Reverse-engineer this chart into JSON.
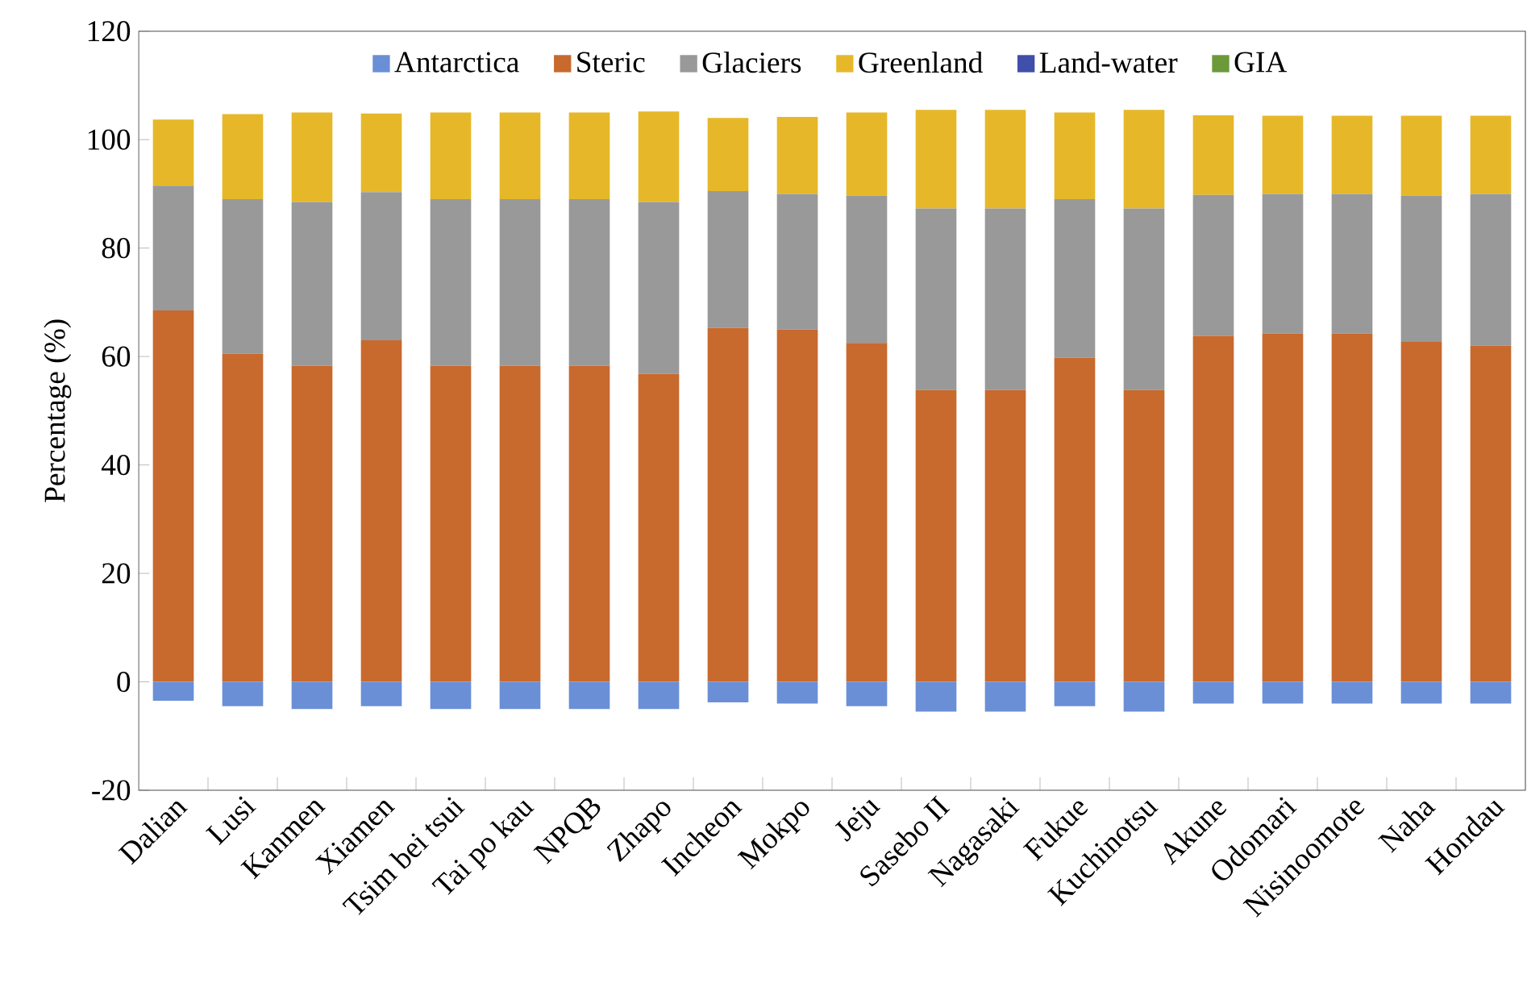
{
  "chart_data": {
    "type": "bar",
    "stacked": true,
    "ylabel": "Percentage (%)",
    "categories": [
      "Dalian",
      "Lusi",
      "Kanmen",
      "Xiamen",
      "Tsim bei tsui",
      "Tai po kau",
      "NPQB",
      "Zhapo",
      "Incheon",
      "Mokpo",
      "Jeju",
      "Sasebo II",
      "Nagasaki",
      "Fukue",
      "Kuchinotsu",
      "Akune",
      "Odomari",
      "Nisinoomote",
      "Naha",
      "Hondau"
    ],
    "series": [
      {
        "name": "Antarctica",
        "color": "#6a8fd6",
        "values": [
          -3.5,
          -4.5,
          -5,
          -4.5,
          -5,
          -5,
          -5,
          -5,
          -3.8,
          -4,
          -4.5,
          -5.5,
          -5.5,
          -4.5,
          -5.5,
          -4,
          -4,
          -4,
          -4,
          -4
        ]
      },
      {
        "name": "Steric",
        "color": "#c8692e",
        "values": [
          68.5,
          60.5,
          58.3,
          63,
          58.3,
          58.3,
          58.3,
          56.8,
          65.3,
          65,
          62.5,
          53.8,
          53.8,
          59.8,
          53.8,
          63.8,
          64.2,
          64.2,
          62.8,
          62
        ]
      },
      {
        "name": "Glaciers",
        "color": "#999999",
        "values": [
          23,
          28.5,
          30.2,
          27.3,
          30.7,
          30.7,
          30.7,
          31.7,
          25.2,
          25,
          27.2,
          33.5,
          33.5,
          29.2,
          33.5,
          26,
          25.8,
          25.8,
          26.9,
          28
        ]
      },
      {
        "name": "Greenland",
        "color": "#e6b829",
        "values": [
          12.2,
          15.7,
          16.5,
          14.5,
          16,
          16,
          16,
          16.7,
          13.5,
          14.2,
          15.3,
          18.2,
          18.2,
          16,
          18.2,
          14.7,
          14.4,
          14.4,
          14.7,
          14.4
        ]
      },
      {
        "name": "Land-water",
        "color": "#3f4faa",
        "values": [
          0,
          0,
          0,
          0,
          0,
          0,
          0,
          0,
          0,
          0,
          0,
          0,
          0,
          0,
          0,
          0,
          0,
          0,
          0,
          0
        ]
      },
      {
        "name": "GIA",
        "color": "#6a9a3a",
        "values": [
          0,
          0,
          0,
          0,
          0,
          0,
          0,
          0,
          0,
          0,
          0,
          0,
          0,
          0,
          0,
          0,
          0,
          0,
          0,
          0
        ]
      }
    ],
    "ylim": [
      -20,
      120
    ],
    "yticks": [
      -20,
      0,
      20,
      40,
      60,
      80,
      100,
      120
    ],
    "legend": "top"
  }
}
